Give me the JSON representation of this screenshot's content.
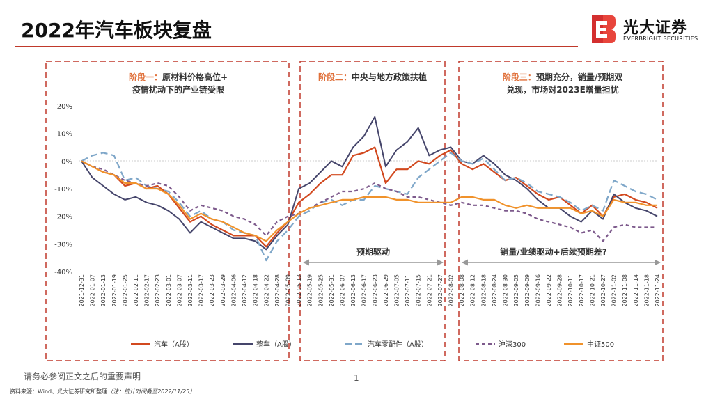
{
  "page": {
    "title": "2022年汽车板块复盘",
    "brand_cn": "光大证券",
    "brand_en": "EVERBRIGHT SECURITIES",
    "disclaimer": "请务必参阅正文之后的重要声明",
    "page_number": "1",
    "source": "资料来源：Wind、光大证券研究所整理",
    "source_note": "（注：统计时间截至2022/11/25）"
  },
  "colors": {
    "brand_red": "#c0392b",
    "frame": "#c0392b",
    "arrow": "#999999"
  },
  "phases": [
    {
      "label_line1": "阶段一：原材料价格高位+",
      "label_line2": "疫情扰动下的产业链受限"
    },
    {
      "label_line1": "阶段二：中央与地方政策扶植",
      "label_line2": "",
      "arrow_label": "预期驱动"
    },
    {
      "label_line1": "阶段三：预期充分，销量/预期双",
      "label_line2": "兑现，市场对2023E增量担忧",
      "arrow_label": "销量/业绩驱动+后续预期差?"
    }
  ],
  "chart_data": {
    "type": "line",
    "ylim": [
      -40,
      20
    ],
    "yticks": [
      "20%",
      "10%",
      "0%",
      "-10%",
      "-20%",
      "-30%",
      "-40%"
    ],
    "ytick_values": [
      20,
      10,
      0,
      -10,
      -20,
      -30,
      -40
    ],
    "x": [
      "2021-12-31",
      "2022-01-07",
      "2022-01-13",
      "2022-01-19",
      "2022-01-25",
      "2022-02-11",
      "2022-02-17",
      "2022-02-23",
      "2022-03-01",
      "2022-03-07",
      "2022-03-11",
      "2022-03-17",
      "2022-03-23",
      "2022-03-29",
      "2022-04-06",
      "2022-04-12",
      "2022-04-18",
      "2022-04-22",
      "2022-04-28",
      "2022-05-09",
      "2022-05-13",
      "2022-05-19",
      "2022-05-25",
      "2022-05-31",
      "2022-06-07",
      "2022-06-13",
      "2022-06-17",
      "2022-06-23",
      "2022-06-29",
      "2022-07-05",
      "2022-07-11",
      "2022-07-15",
      "2022-07-21",
      "2022-07-27",
      "2022-08-02",
      "2022-08-08",
      "2022-08-12",
      "2022-08-18",
      "2022-08-24",
      "2022-08-30",
      "2022-09-05",
      "2022-09-09",
      "2022-09-16",
      "2022-09-22",
      "2022-09-28",
      "2022-10-11",
      "2022-10-17",
      "2022-10-21",
      "2022-10-27",
      "2022-11-02",
      "2022-11-08",
      "2022-11-14",
      "2022-11-18",
      "2022-11-24"
    ],
    "series": [
      {
        "name": "汽车（A股）",
        "color": "#d2491f",
        "dash": "",
        "values": [
          0,
          -2,
          -4,
          -5,
          -9,
          -8,
          -10,
          -9,
          -12,
          -17,
          -22,
          -20,
          -23,
          -25,
          -27,
          -27,
          -27,
          -31,
          -26,
          -22,
          -15,
          -12,
          -8,
          -5,
          -5,
          2,
          3,
          5,
          -8,
          -3,
          -3,
          0,
          -1,
          2,
          4,
          -1,
          -3,
          -1,
          -4,
          -7,
          -6,
          -9,
          -12,
          -14,
          -13,
          -16,
          -19,
          -16,
          -20,
          -13,
          -12,
          -14,
          -15,
          -17
        ]
      },
      {
        "name": "整车（A股）",
        "color": "#45456b",
        "dash": "",
        "values": [
          0,
          -6,
          -9,
          -12,
          -14,
          -13,
          -15,
          -16,
          -18,
          -21,
          -26,
          -22,
          -24,
          -26,
          -28,
          -28,
          -29,
          -32,
          -27,
          -23,
          -10,
          -8,
          -4,
          0,
          -2,
          5,
          9,
          16,
          -2,
          4,
          7,
          12,
          2,
          4,
          5,
          0,
          -1,
          2,
          -1,
          -5,
          -7,
          -10,
          -14,
          -17,
          -17,
          -20,
          -22,
          -18,
          -21,
          -12,
          -15,
          -17,
          -18,
          -20
        ]
      },
      {
        "name": "汽车零配件（A股）",
        "color": "#7fa7c9",
        "dash": "10,5",
        "values": [
          0,
          2,
          3,
          2,
          -7,
          -6,
          -9,
          -10,
          -11,
          -15,
          -20,
          -18,
          -21,
          -22,
          -25,
          -26,
          -27,
          -36,
          -29,
          -25,
          -20,
          -18,
          -15,
          -14,
          -16,
          -14,
          -14,
          -9,
          -10,
          -11,
          -12,
          -6,
          -3,
          0,
          3,
          0,
          -1,
          1,
          -3,
          -7,
          -6,
          -8,
          -11,
          -12,
          -13,
          -15,
          -18,
          -16,
          -18,
          -7,
          -9,
          -11,
          -12,
          -14
        ]
      },
      {
        "name": "沪深300",
        "color": "#7d5a8c",
        "dash": "5,4",
        "values": [
          0,
          -2,
          -3,
          -5,
          -7,
          -8,
          -9,
          -8,
          -9,
          -13,
          -18,
          -16,
          -17,
          -18,
          -20,
          -21,
          -23,
          -27,
          -22,
          -20,
          -19,
          -17,
          -15,
          -13,
          -11,
          -11,
          -10,
          -8,
          -10,
          -11,
          -13,
          -13,
          -14,
          -15,
          -16,
          -15,
          -16,
          -16,
          -17,
          -18,
          -18,
          -19,
          -21,
          -22,
          -23,
          -24,
          -26,
          -25,
          -29,
          -24,
          -23,
          -24,
          -24,
          -24
        ]
      },
      {
        "name": "中证500",
        "color": "#f0922b",
        "dash": "",
        "values": [
          0,
          -2,
          -4,
          -5,
          -8,
          -8,
          -10,
          -10,
          -12,
          -16,
          -21,
          -19,
          -21,
          -22,
          -24,
          -26,
          -27,
          -29,
          -25,
          -22,
          -19,
          -17,
          -16,
          -15,
          -14,
          -14,
          -13,
          -13,
          -13,
          -14,
          -14,
          -15,
          -15,
          -15,
          -15,
          -13,
          -13,
          -14,
          -14,
          -16,
          -17,
          -16,
          -17,
          -17,
          -17,
          -17,
          -19,
          -18,
          -20,
          -14,
          -15,
          -15,
          -16,
          -16
        ]
      }
    ]
  }
}
